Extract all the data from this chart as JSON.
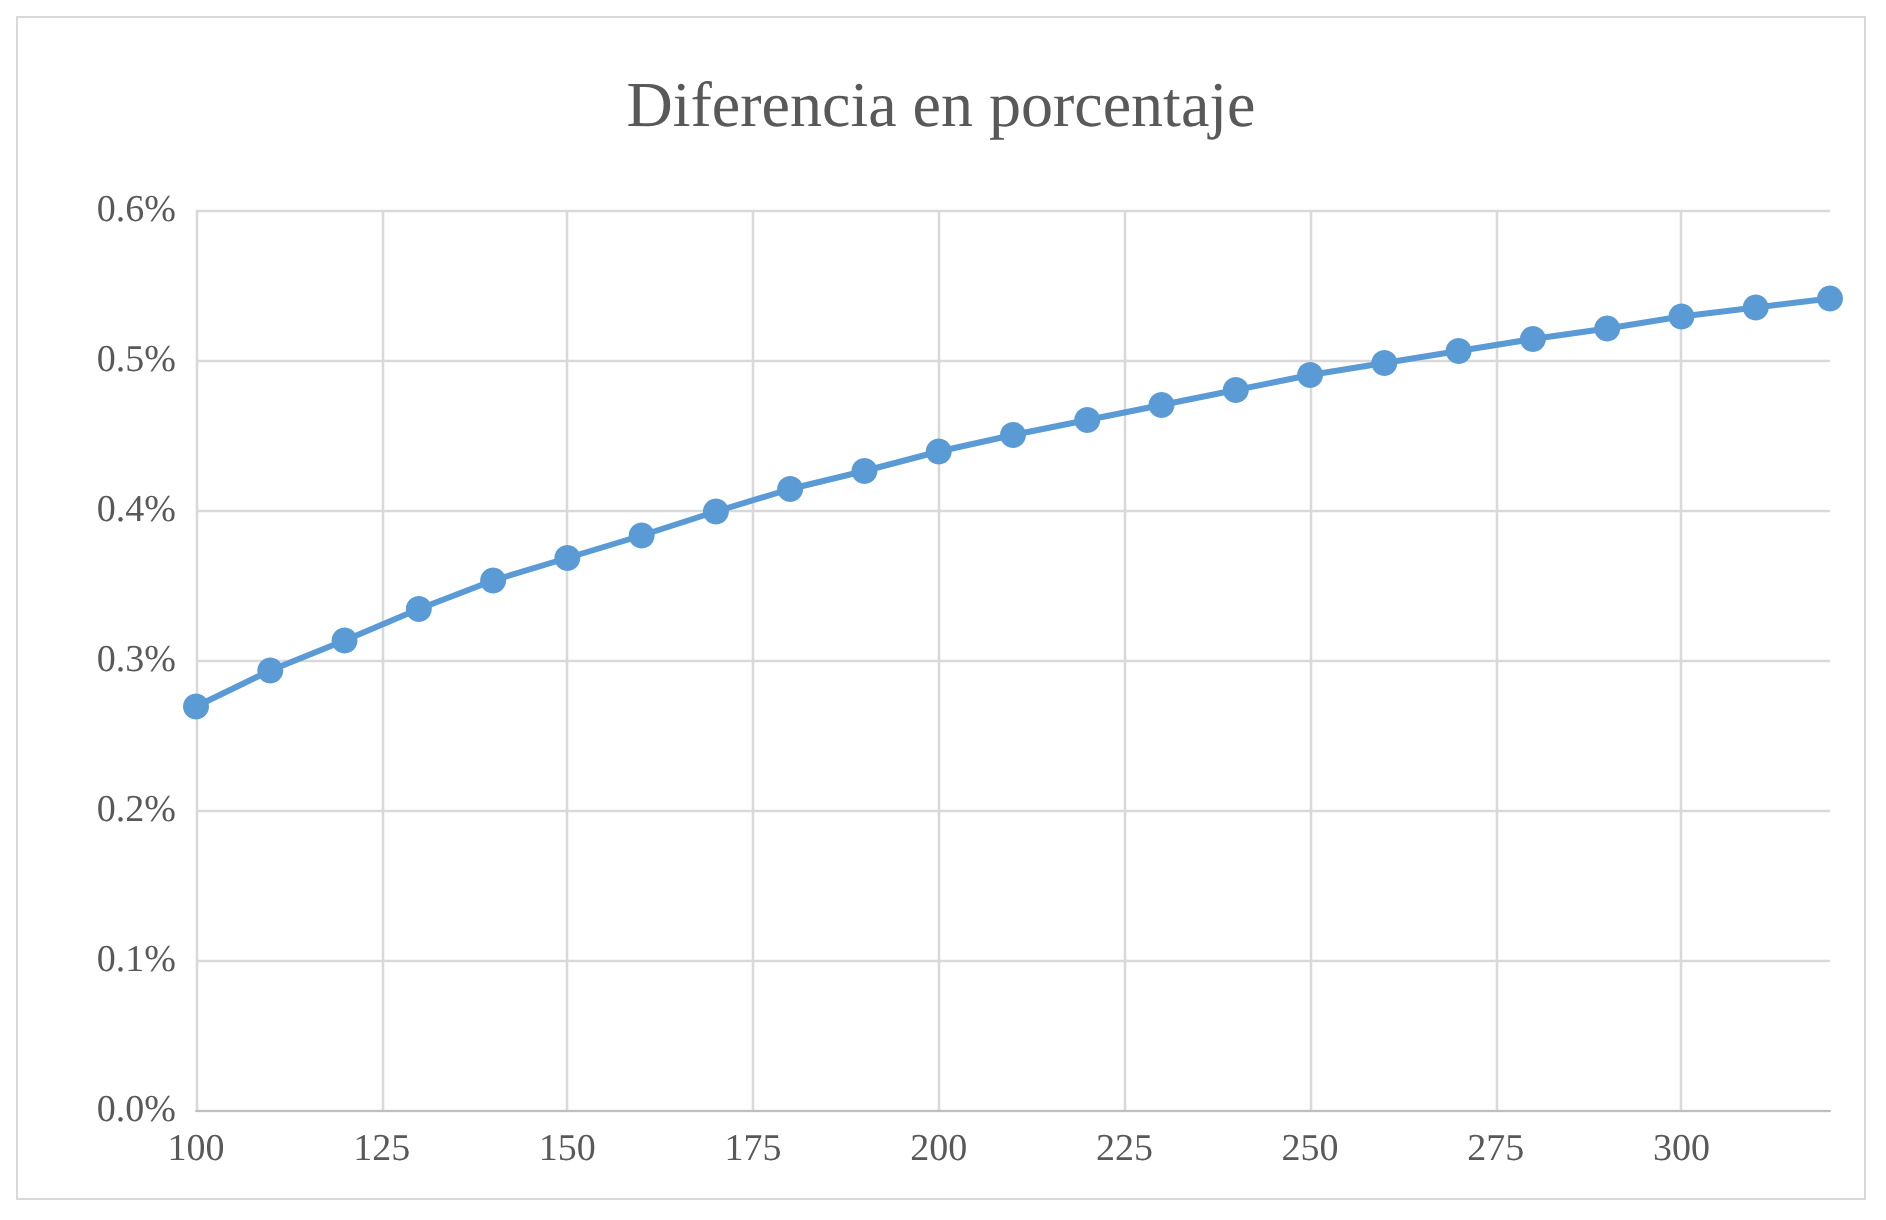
{
  "chart_data": {
    "type": "line",
    "title": "Diferencia en porcentaje",
    "x": [
      100,
      110,
      120,
      130,
      140,
      150,
      160,
      170,
      180,
      190,
      200,
      210,
      220,
      230,
      240,
      250,
      260,
      270,
      280,
      290,
      300,
      310,
      320
    ],
    "series": [
      {
        "color": "#5b9bd5",
        "values": [
          0.269,
          0.293,
          0.313,
          0.334,
          0.353,
          0.368,
          0.383,
          0.399,
          0.414,
          0.426,
          0.439,
          0.45,
          0.46,
          0.47,
          0.48,
          0.49,
          0.498,
          0.506,
          0.514,
          0.521,
          0.529,
          0.535,
          0.541
        ]
      }
    ],
    "xlim": [
      100,
      320
    ],
    "xticks": [
      100,
      125,
      150,
      175,
      200,
      225,
      250,
      275,
      300
    ],
    "ylim": [
      0,
      0.6
    ],
    "yticks": [
      {
        "value": 0,
        "label": "0.0%"
      },
      {
        "value": 0.1,
        "label": "0.1%"
      },
      {
        "value": 0.2,
        "label": "0.2%"
      },
      {
        "value": 0.3,
        "label": "0.3%"
      },
      {
        "value": 0.4,
        "label": "0.4%"
      },
      {
        "value": 0.5,
        "label": "0.5%"
      },
      {
        "value": 0.6,
        "label": "0.6%"
      }
    ],
    "grid": true,
    "marker": "circle",
    "line_style": "solid"
  }
}
